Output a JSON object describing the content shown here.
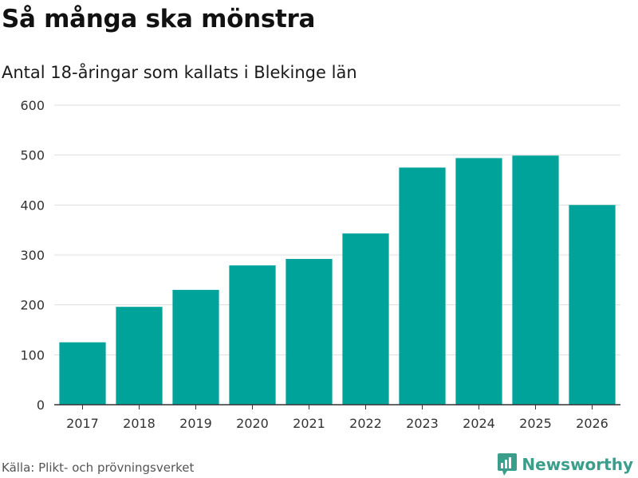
{
  "header": {
    "title": "Så många ska mönstra",
    "subtitle": "Antal 18-åringar som kallats i Blekinge län"
  },
  "footer": {
    "source": "Källa: Plikt- och prövningsverket",
    "brand": "Newsworthy"
  },
  "colors": {
    "bar": "#00a39a",
    "grid": "#dddddd",
    "axis": "#333333",
    "brand": "#3a9e8b"
  },
  "chart_data": {
    "type": "bar",
    "title": "Så många ska mönstra",
    "subtitle": "Antal 18-åringar som kallats i Blekinge län",
    "xlabel": "",
    "ylabel": "",
    "categories": [
      "2017",
      "2018",
      "2019",
      "2020",
      "2021",
      "2022",
      "2023",
      "2024",
      "2025",
      "2026"
    ],
    "values": [
      125,
      196,
      230,
      279,
      292,
      343,
      475,
      494,
      499,
      400
    ],
    "ylim": [
      0,
      600
    ],
    "yticks": [
      0,
      100,
      200,
      300,
      400,
      500,
      600
    ],
    "grid": true,
    "legend": "none"
  }
}
